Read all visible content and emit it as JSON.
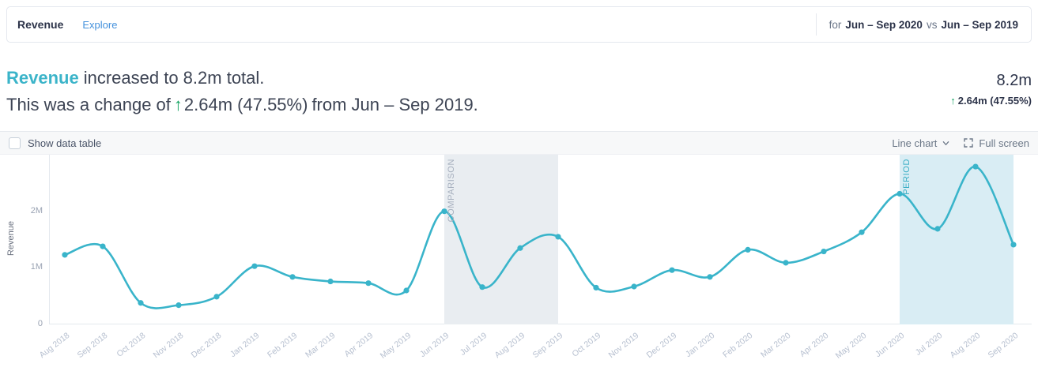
{
  "header": {
    "title": "Revenue",
    "explore_label": "Explore",
    "period_for": "for",
    "period_current": "Jun – Sep 2020",
    "period_vs": "vs",
    "period_comparison": "Jun – Sep 2019"
  },
  "summary": {
    "metric": "Revenue",
    "line1_rest": "increased to 8.2m total.",
    "line2_prefix": "This was a change of",
    "arrow": "↑",
    "change": "2.64m (47.55%)",
    "line2_suffix": "from Jun – Sep 2019.",
    "total": "8.2m",
    "delta": "2.64m (47.55%)"
  },
  "toolbar": {
    "show_data_table": "Show data table",
    "chart_type": "Line chart",
    "full_screen": "Full screen"
  },
  "chart_data": {
    "type": "line",
    "ylabel": "Revenue",
    "unit": "millions",
    "ylim": [
      0,
      3
    ],
    "yticks": [
      {
        "value": 0,
        "label": "0"
      },
      {
        "value": 1,
        "label": "1M"
      },
      {
        "value": 2,
        "label": "2M"
      }
    ],
    "grid": false,
    "line_color": "#39b4ca",
    "categories": [
      "Aug 2018",
      "Sep 2018",
      "Oct 2018",
      "Nov 2018",
      "Dec 2018",
      "Jan 2019",
      "Feb 2019",
      "Mar 2019",
      "Apr 2019",
      "May 2019",
      "Jun 2019",
      "Jul 2019",
      "Aug 2019",
      "Sep 2019",
      "Oct 2019",
      "Nov 2019",
      "Dec 2019",
      "Jan 2020",
      "Feb 2020",
      "Mar 2020",
      "Apr 2020",
      "May 2020",
      "Jun 2020",
      "Jul 2020",
      "Aug 2020",
      "Sep 2020"
    ],
    "values": [
      1.23,
      1.38,
      0.38,
      0.34,
      0.49,
      1.03,
      0.84,
      0.76,
      0.73,
      0.6,
      2.0,
      0.66,
      1.35,
      1.55,
      0.65,
      0.67,
      0.96,
      0.84,
      1.32,
      1.09,
      1.29,
      1.63,
      2.31,
      1.69,
      2.79,
      1.41
    ],
    "bands": [
      {
        "label": "COMPARISON",
        "start": "Jun 2019",
        "end": "Sep 2019",
        "fill": "#e9edf1",
        "label_color": "#a6afbe"
      },
      {
        "label": "PERIOD",
        "start": "Jun 2020",
        "end": "Sep 2020",
        "fill": "#d9edf4",
        "label_color": "#38adc4"
      }
    ]
  }
}
